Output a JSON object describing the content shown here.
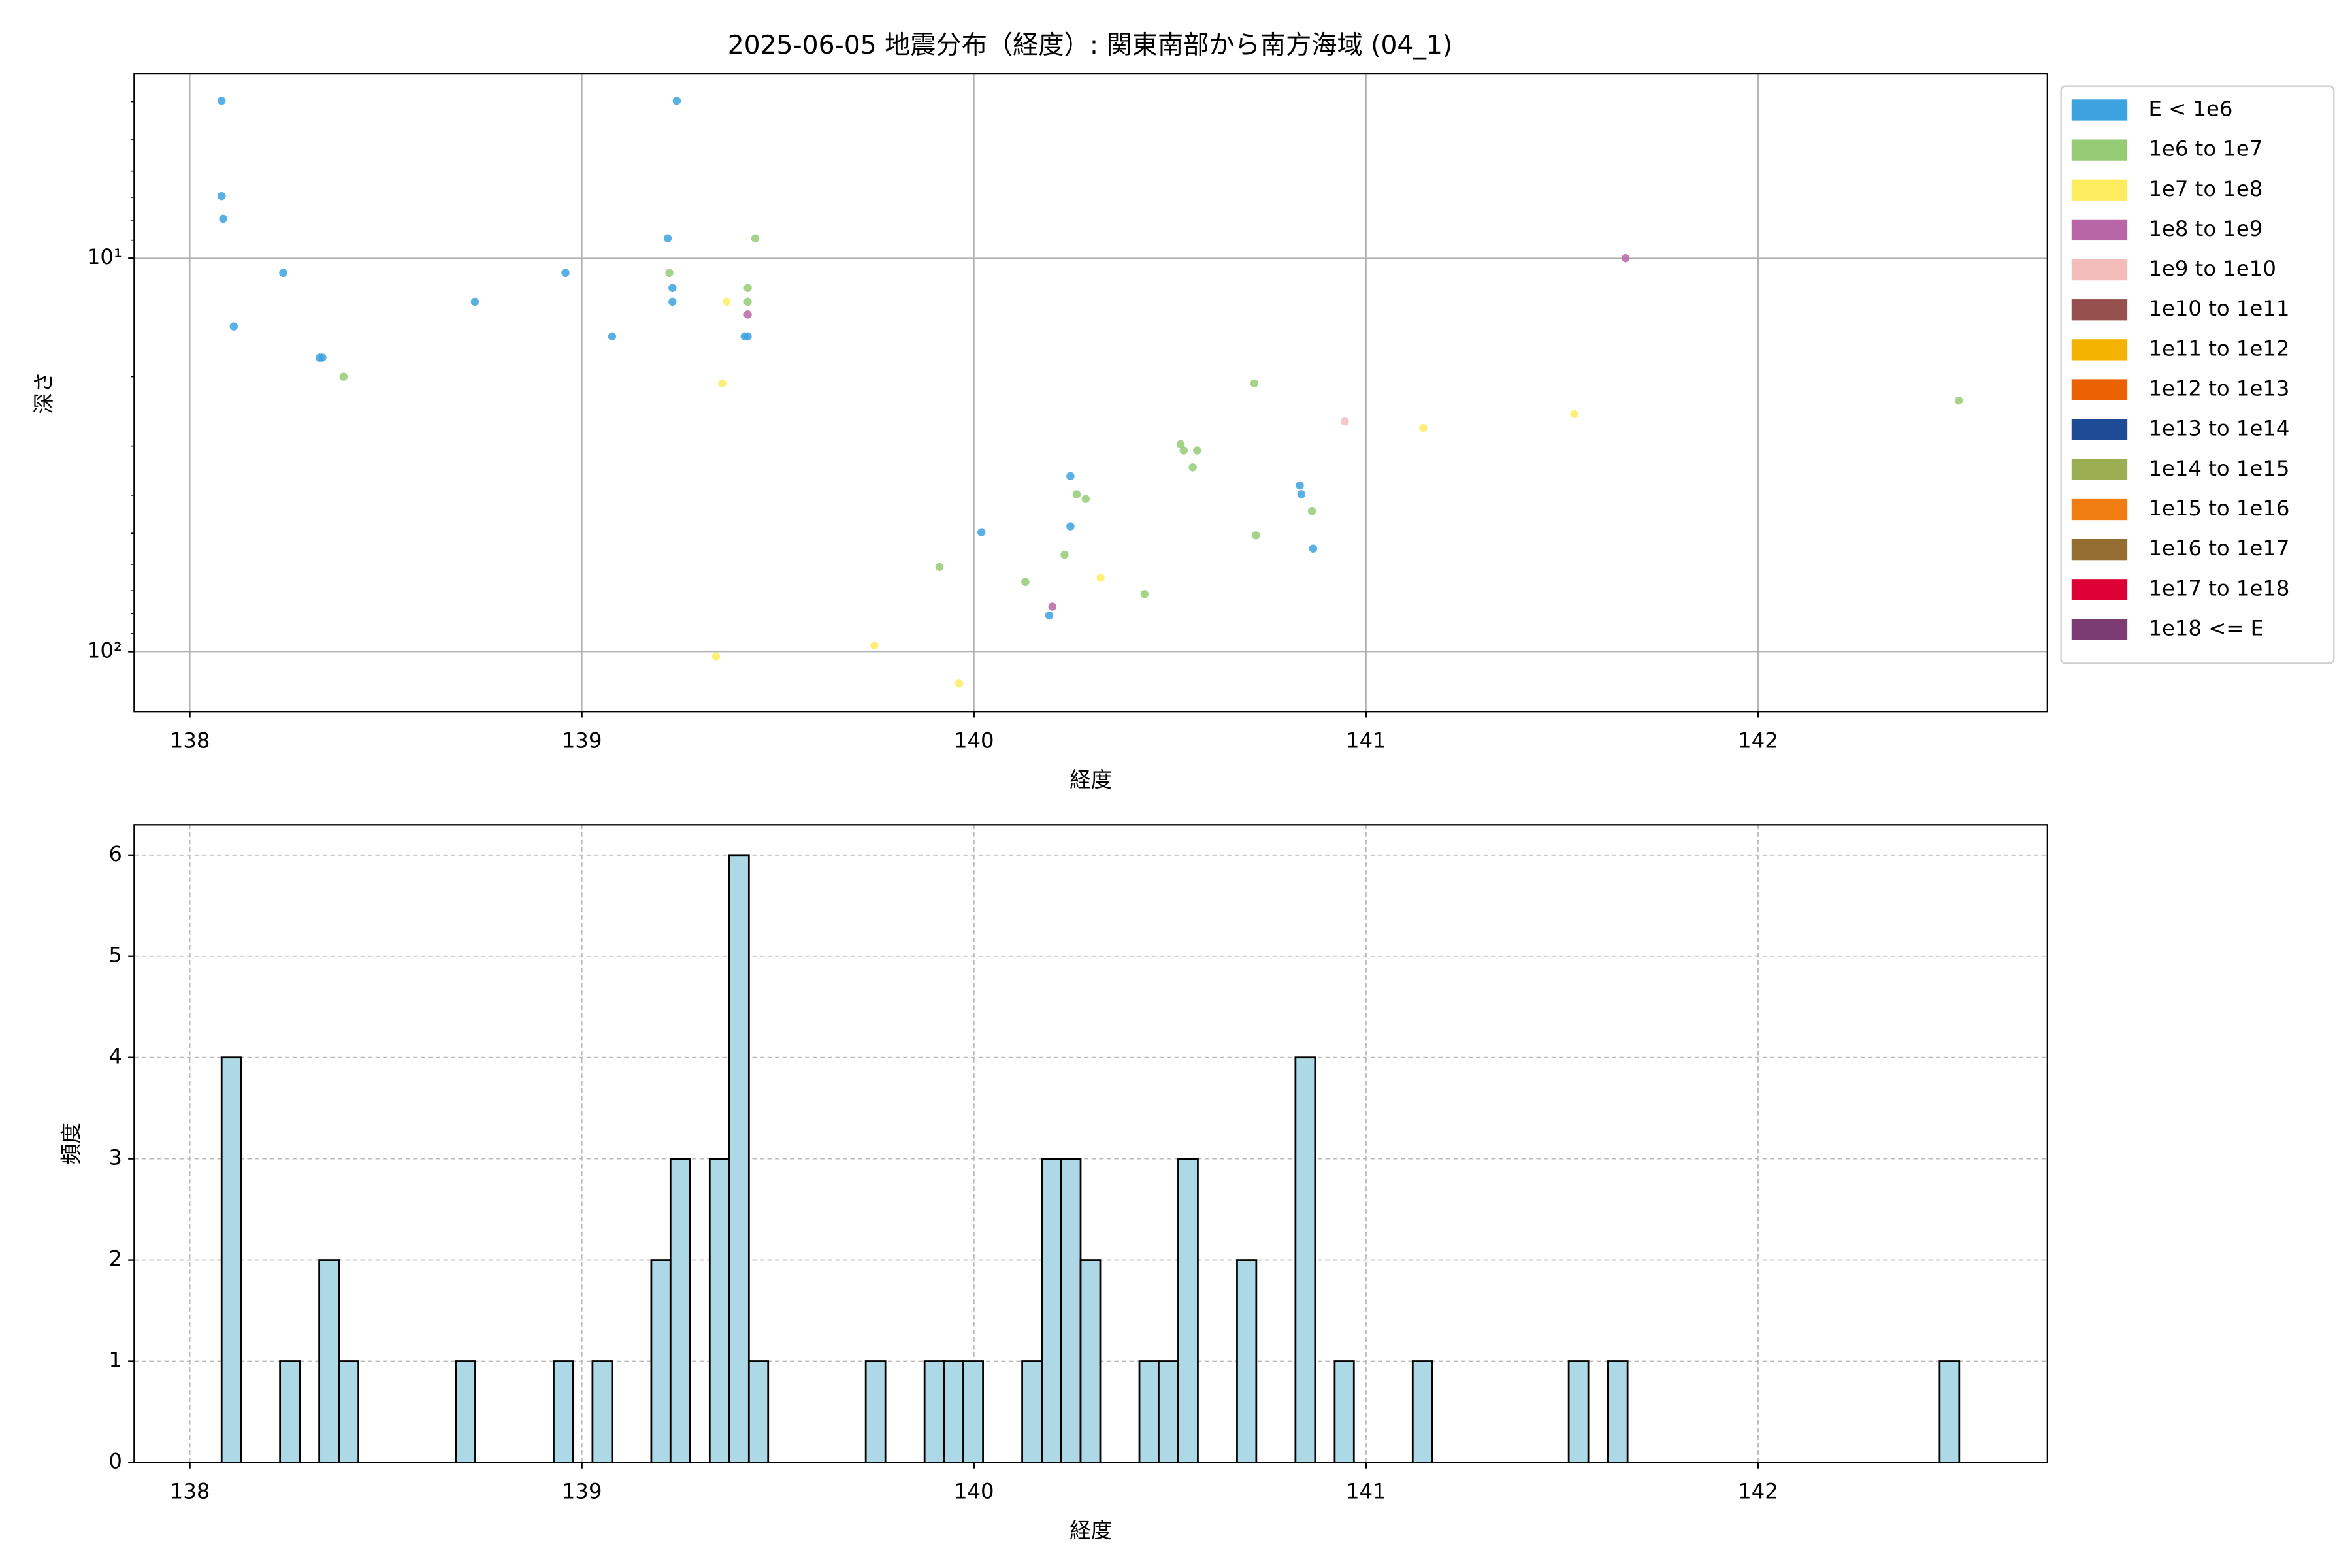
{
  "chart_data": [
    {
      "type": "scatter",
      "title": "2025-06-05 地震分布（経度）: 関東南部から南方海域 (04_1)",
      "xlabel": "経度",
      "ylabel": "深さ",
      "xlim": [
        137.858,
        142.738
      ],
      "xticks": [
        138,
        139,
        140,
        141,
        142
      ],
      "ylim": [
        3.4,
        142
      ],
      "log_y": true,
      "y_inverted": true,
      "yticks": [
        {
          "value": 10,
          "label": "10¹"
        },
        {
          "value": 100,
          "label": "10²"
        }
      ],
      "yminor_ticks": [
        4,
        5,
        6,
        7,
        8,
        9,
        20,
        30,
        40,
        50,
        60,
        70,
        80,
        90
      ],
      "grid": "solid",
      "legend": "outside right",
      "series": [
        {
          "name": "E < 1e6",
          "color": "#3ca2e0",
          "x": [
            138.081,
            138.081,
            138.085,
            138.238,
            138.112,
            138.331,
            138.338,
            138.727,
            138.958,
            139.077,
            139.242,
            139.219,
            139.231,
            139.231,
            139.415,
            139.423,
            140.019,
            140.246,
            140.246,
            140.192,
            140.831,
            140.835,
            140.865
          ],
          "values": [
            3.98,
            6.95,
            7.94,
            10.9,
            14.9,
            17.9,
            17.9,
            12.9,
            10.9,
            15.8,
            3.98,
            8.9,
            11.9,
            12.9,
            15.8,
            15.8,
            49.7,
            35.8,
            48,
            80.9,
            37.8,
            39.8,
            54.7
          ]
        },
        {
          "name": "1e6 to 1e7",
          "color": "#94cb74",
          "x": [
            138.392,
            139.223,
            139.442,
            139.423,
            139.423,
            140.715,
            140.527,
            140.535,
            140.569,
            140.558,
            140.262,
            140.285,
            140.862,
            140.719,
            140.231,
            139.912,
            140.131,
            140.435,
            142.512
          ],
          "values": [
            20,
            10.9,
            8.9,
            11.9,
            12.9,
            20.8,
            29.7,
            30.8,
            30.8,
            34,
            39.8,
            40.9,
            43.9,
            50.6,
            56.7,
            60.9,
            66.5,
            71.4,
            23
          ]
        },
        {
          "name": "1e7 to 1e8",
          "color": "#fdec5f",
          "x": [
            139.369,
            139.358,
            141.146,
            141.531,
            140.323,
            139.746,
            139.342,
            139.962
          ],
          "values": [
            12.9,
            20.8,
            27,
            24.9,
            64.9,
            96.5,
            102.7,
            120.5
          ]
        },
        {
          "name": "1e8 to 1e9",
          "color": "#b966a6",
          "x": [
            139.423,
            140.2,
            141.662
          ],
          "values": [
            13.9,
            76.8,
            10
          ]
        },
        {
          "name": "1e9 to 1e10",
          "color": "#f3bdbb",
          "x": [
            140.946
          ],
          "values": [
            26
          ]
        },
        {
          "name": "1e10 to 1e11",
          "color": "#96504d",
          "x": [],
          "values": []
        },
        {
          "name": "1e11 to 1e12",
          "color": "#f5b301",
          "x": [],
          "values": []
        },
        {
          "name": "1e12 to 1e13",
          "color": "#eb6203",
          "x": [],
          "values": []
        },
        {
          "name": "1e13 to 1e14",
          "color": "#1d4b96",
          "x": [],
          "values": []
        },
        {
          "name": "1e14 to 1e15",
          "color": "#9bae52",
          "x": [],
          "values": []
        },
        {
          "name": "1e15 to 1e16",
          "color": "#f07d12",
          "x": [],
          "values": []
        },
        {
          "name": "1e16 to 1e17",
          "color": "#946d32",
          "x": [],
          "values": []
        },
        {
          "name": "1e17 to 1e18",
          "color": "#dc0035",
          "x": [],
          "values": []
        },
        {
          "name": "1e18 <= E",
          "color": "#7b3b73",
          "x": [],
          "values": []
        }
      ]
    },
    {
      "type": "histogram",
      "xlabel": "経度",
      "ylabel": "頻度",
      "xlim": [
        137.858,
        142.738
      ],
      "xticks": [
        138,
        139,
        140,
        141,
        142
      ],
      "ylim": [
        0,
        6.3
      ],
      "yticks": [
        0,
        1,
        2,
        3,
        4,
        5,
        6
      ],
      "grid": "dashed",
      "color": "#add8e6",
      "edgecolor": "#000000",
      "bins": [
        138.081,
        138.131,
        138.181,
        138.23,
        138.28,
        138.33,
        138.38,
        138.43,
        138.479,
        138.529,
        138.579,
        138.629,
        138.679,
        138.728,
        138.778,
        138.828,
        138.878,
        138.928,
        138.977,
        139.027,
        139.077,
        139.127,
        139.177,
        139.226,
        139.276,
        139.326,
        139.376,
        139.426,
        139.475,
        139.525,
        139.575,
        139.625,
        139.675,
        139.724,
        139.774,
        139.824,
        139.874,
        139.924,
        139.973,
        140.023,
        140.073,
        140.123,
        140.173,
        140.222,
        140.272,
        140.322,
        140.372,
        140.422,
        140.471,
        140.521,
        140.571,
        140.621,
        140.671,
        140.72,
        140.77,
        140.82,
        140.87,
        140.92,
        140.969,
        141.019,
        141.069,
        141.119,
        141.169,
        141.218,
        141.268,
        141.318,
        141.368,
        141.418,
        141.467,
        141.517,
        141.567,
        141.617,
        141.667,
        141.716,
        141.766,
        141.816,
        141.866,
        141.916,
        141.965,
        142.015,
        142.065,
        142.115,
        142.165,
        142.214,
        142.264,
        142.314,
        142.364,
        142.414,
        142.463,
        142.513
      ],
      "values": [
        4,
        0,
        0,
        1,
        0,
        2,
        1,
        0,
        0,
        0,
        0,
        0,
        1,
        0,
        0,
        0,
        0,
        1,
        0,
        1,
        0,
        0,
        2,
        3,
        0,
        3,
        6,
        1,
        0,
        0,
        0,
        0,
        0,
        1,
        0,
        0,
        1,
        1,
        1,
        0,
        0,
        1,
        3,
        3,
        2,
        0,
        0,
        1,
        1,
        3,
        0,
        0,
        2,
        0,
        0,
        4,
        0,
        1,
        0,
        0,
        0,
        1,
        0,
        0,
        0,
        0,
        0,
        0,
        0,
        1,
        0,
        1,
        0,
        0,
        0,
        0,
        0,
        0,
        0,
        0,
        0,
        0,
        0,
        0,
        0,
        0,
        0,
        0,
        1
      ]
    }
  ]
}
